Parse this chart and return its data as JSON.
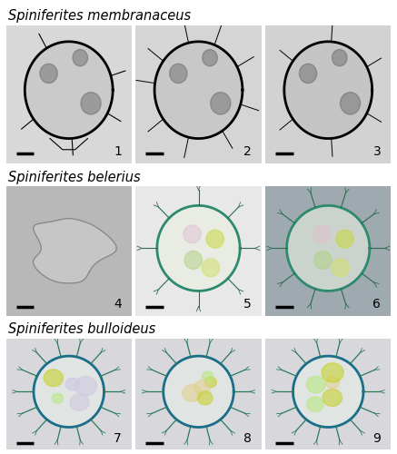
{
  "title_row1": "Spiniferites membranaceus",
  "title_row2": "Spiniferites belerius",
  "title_row3": "Spiniferites bulloideus",
  "labels": [
    "1",
    "2",
    "3",
    "4",
    "5",
    "6",
    "7",
    "8",
    "9"
  ],
  "bg_color": "#ffffff",
  "title_fontsize": 10.5,
  "label_fontsize": 10,
  "fig_width": 4.37,
  "fig_height": 5.0
}
